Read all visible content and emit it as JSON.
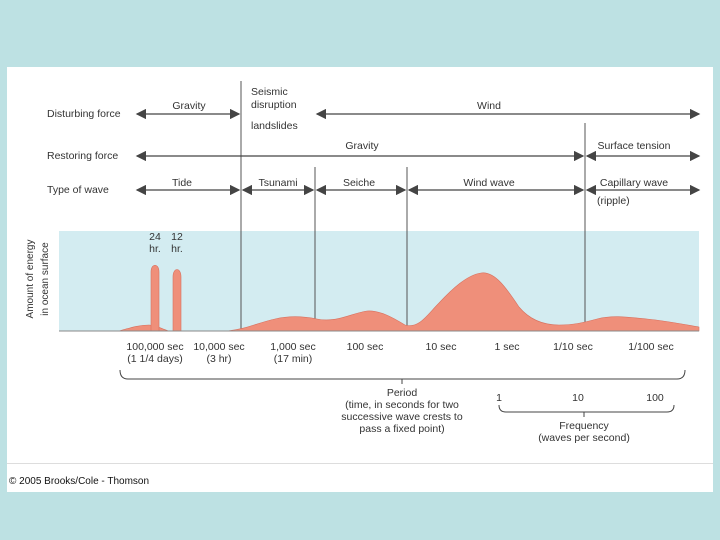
{
  "rows": {
    "disturbing": {
      "label": "Disturbing force",
      "gravity": "Gravity",
      "seismic": [
        "Seismic",
        "disruption",
        "landslides"
      ],
      "wind": "Wind"
    },
    "restoring": {
      "label": "Restoring force",
      "gravity": "Gravity",
      "surface_tension": "Surface tension"
    },
    "type": {
      "label": "Type of wave",
      "tide": "Tide",
      "tsunami": "Tsunami",
      "seiche": "Seiche",
      "wind_wave": "Wind wave",
      "capillary": "Capillary wave",
      "ripple": "(ripple)"
    }
  },
  "y_axis": [
    "Amount of energy",
    "in ocean surface"
  ],
  "peaks": {
    "p24": [
      "24",
      "hr."
    ],
    "p12": [
      "12",
      "hr."
    ]
  },
  "x_ticks": [
    {
      "main": "100,000 sec",
      "sub": "(1 1/4 days)"
    },
    {
      "main": "10,000 sec",
      "sub": "(3 hr)"
    },
    {
      "main": "1,000 sec",
      "sub": "(17 min)"
    },
    {
      "main": "100 sec",
      "sub": ""
    },
    {
      "main": "10 sec",
      "sub": ""
    },
    {
      "main": "1 sec",
      "sub": ""
    },
    {
      "main": "1/10 sec",
      "sub": ""
    },
    {
      "main": "1/100 sec",
      "sub": ""
    }
  ],
  "period": [
    "Period",
    "(time, in seconds for two",
    "successive wave crests to",
    "pass a fixed point)"
  ],
  "frequency": {
    "ticks": [
      "1",
      "10",
      "100"
    ],
    "label": [
      "Frequency",
      "(waves per second)"
    ]
  },
  "credit": "© 2005 Brooks/Cole - Thomson",
  "colors": {
    "page": "#bde1e3",
    "band": "#d3ecf1",
    "energy": "#ef8f7a",
    "line": "#444444"
  }
}
